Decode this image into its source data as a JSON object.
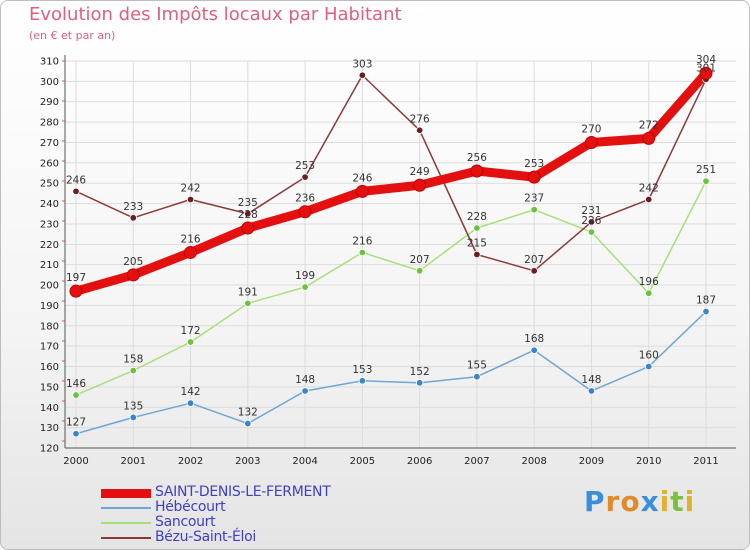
{
  "title": "Evolution des Impôts locaux par Habitant",
  "subtitle": "(en € et par an)",
  "brand": {
    "letters": [
      "P",
      "r",
      "o",
      "x",
      "i",
      "t",
      "i"
    ],
    "colors": [
      "#3a8fd8",
      "#e08a2a",
      "#e08a2a",
      "#3a8fd8",
      "#e0b030",
      "#7cc040",
      "#e0b030"
    ]
  },
  "chart_data": {
    "type": "line",
    "title": "Evolution des Impôts locaux par Habitant",
    "subtitle": "(en € et par an)",
    "xlabel": "",
    "ylabel": "",
    "ylim": [
      120,
      310
    ],
    "yticks": [
      120,
      130,
      140,
      150,
      160,
      170,
      180,
      190,
      200,
      210,
      220,
      230,
      240,
      250,
      260,
      270,
      280,
      290,
      300,
      310
    ],
    "categories": [
      "2000",
      "2001",
      "2002",
      "2003",
      "2004",
      "2005",
      "2006",
      "2007",
      "2008",
      "2009",
      "2010",
      "2011"
    ],
    "series": [
      {
        "name": "SAINT-DENIS-LE-FERMENT",
        "color": "#e41010",
        "point_color": "#e41010",
        "bold": true,
        "values": [
          197,
          205,
          216,
          228,
          236,
          246,
          249,
          256,
          253,
          270,
          272,
          304
        ]
      },
      {
        "name": "Hébécourt",
        "color": "#6fa6d6",
        "point_color": "#3a84c8",
        "bold": false,
        "values": [
          127,
          135,
          142,
          132,
          148,
          153,
          152,
          155,
          168,
          148,
          160,
          187
        ]
      },
      {
        "name": "Sancourt",
        "color": "#a8e078",
        "point_color": "#6cc23e",
        "bold": false,
        "values": [
          146,
          158,
          172,
          191,
          199,
          216,
          207,
          228,
          237,
          226,
          196,
          251
        ]
      },
      {
        "name": "Bézu-Saint-Éloi",
        "color": "#8b3a3a",
        "point_color": "#6a1e1e",
        "bold": false,
        "values": [
          246,
          233,
          242,
          235,
          253,
          303,
          276,
          215,
          207,
          231,
          242,
          301
        ]
      }
    ]
  }
}
